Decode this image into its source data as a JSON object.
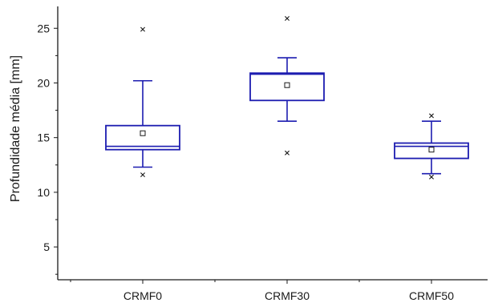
{
  "chart_data": {
    "type": "box",
    "title": "",
    "xlabel": "",
    "ylabel": "Profundidade média [mm]",
    "ylim": [
      2,
      27
    ],
    "yticks": [
      5,
      10,
      15,
      20,
      25
    ],
    "grid": false,
    "legend": "none",
    "colors": {
      "box": "#1c1cb0",
      "axis": "#1a1a1a",
      "outlier": "#1a1a1a"
    },
    "categories": [
      "CRMF0",
      "CRMF30",
      "CRMF50"
    ],
    "boxes": [
      {
        "category": "CRMF0",
        "whisker_low": 12.3,
        "q1": 13.9,
        "median": 14.2,
        "q3": 16.1,
        "whisker_high": 20.2,
        "mean": 15.4,
        "outliers": [
          11.6,
          24.9
        ]
      },
      {
        "category": "CRMF30",
        "whisker_low": 16.5,
        "q1": 18.4,
        "median": 20.8,
        "q3": 20.9,
        "whisker_high": 22.3,
        "mean": 19.8,
        "outliers": [
          13.6,
          25.9
        ]
      },
      {
        "category": "CRMF50",
        "whisker_low": 11.7,
        "q1": 13.1,
        "median": 14.2,
        "q3": 14.5,
        "whisker_high": 16.5,
        "mean": 13.9,
        "outliers": [
          11.4,
          17.0
        ]
      }
    ]
  }
}
